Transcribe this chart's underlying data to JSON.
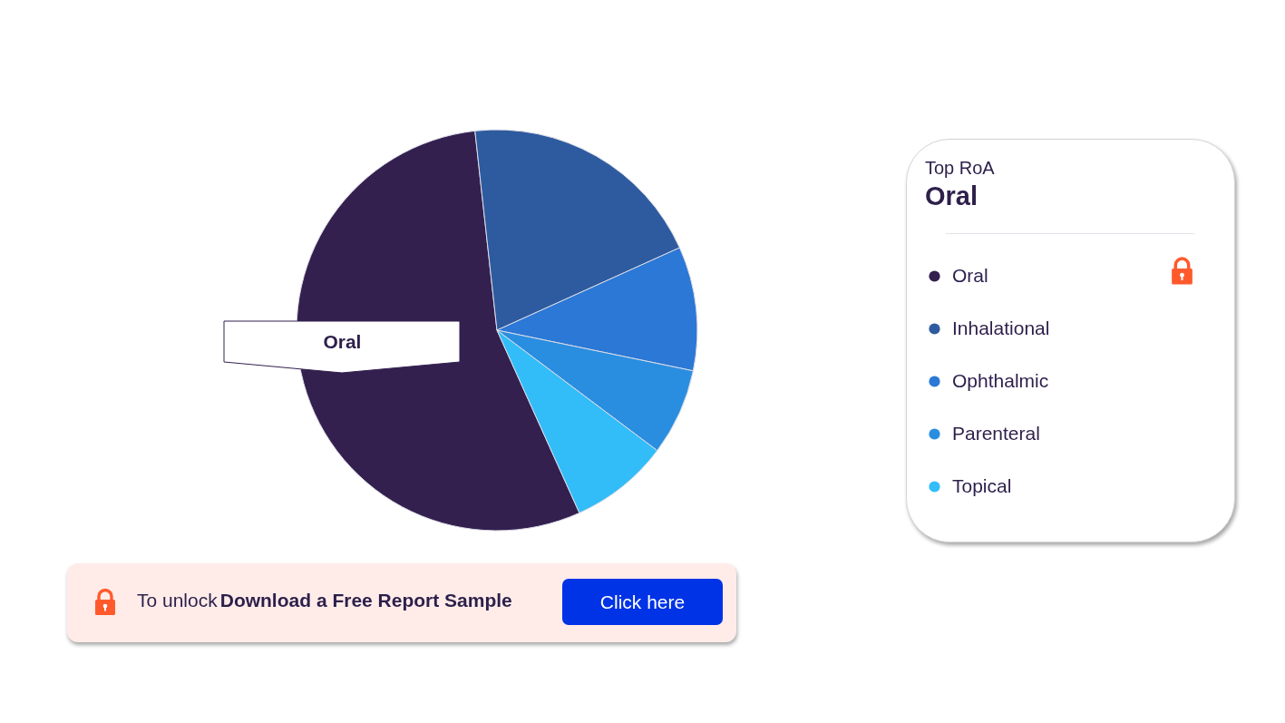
{
  "chart_data": {
    "type": "pie",
    "categories": [
      "Oral",
      "Inhalational",
      "Ophthalmic",
      "Parenteral",
      "Topical"
    ],
    "values": [
      55,
      20,
      10,
      7,
      8
    ],
    "colors": [
      "#33204f",
      "#2e5b9f",
      "#2b78d6",
      "#2a8ee0",
      "#33bdf8"
    ],
    "legend": "right",
    "legend_title": "Top RoA",
    "annotations": [
      {
        "text": "Oral",
        "x": "Oral"
      },
      "Oral",
      "To unlock",
      "Download a Free Report Sample",
      "Click here"
    ]
  }
}
